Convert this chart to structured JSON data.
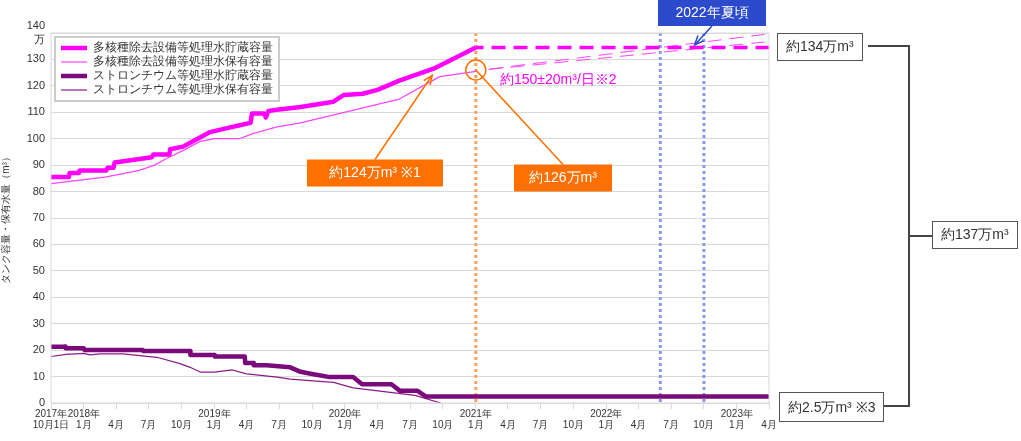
{
  "chart_data": {
    "type": "line",
    "ylabel": "タンク容量・保有水量（m³）",
    "ylim": [
      0,
      140
    ],
    "yticks": [
      0,
      10,
      20,
      30,
      40,
      50,
      60,
      70,
      80,
      90,
      100,
      110,
      120,
      130,
      {
        "value": 140,
        "label": "140\n万"
      }
    ],
    "xlim": [
      "2017-10-01",
      "2023-04-01"
    ],
    "xticks": [
      {
        "value": "2017-10-01",
        "label": "2017年\n10月1日"
      },
      {
        "value": "2018-01-01",
        "label": "2018年\n1月"
      },
      {
        "value": "2018-04-01",
        "label": "\n4月"
      },
      {
        "value": "2018-07-01",
        "label": "\n7月"
      },
      {
        "value": "2018-10-01",
        "label": "\n10月"
      },
      {
        "value": "2019-01-01",
        "label": "2019年\n1月"
      },
      {
        "value": "2019-04-01",
        "label": "\n4月"
      },
      {
        "value": "2019-07-01",
        "label": "\n7月"
      },
      {
        "value": "2019-10-01",
        "label": "\n10月"
      },
      {
        "value": "2020-01-01",
        "label": "2020年\n1月"
      },
      {
        "value": "2020-04-01",
        "label": "\n4月"
      },
      {
        "value": "2020-07-01",
        "label": "\n7月"
      },
      {
        "value": "2020-10-01",
        "label": "\n10月"
      },
      {
        "value": "2021-01-01",
        "label": "2021年\n1月"
      },
      {
        "value": "2021-04-01",
        "label": "\n4月"
      },
      {
        "value": "2021-07-01",
        "label": "\n7月"
      },
      {
        "value": "2021-10-01",
        "label": "\n10月"
      },
      {
        "value": "2022-01-01",
        "label": "2022年\n1月"
      },
      {
        "value": "2022-04-01",
        "label": "\n4月"
      },
      {
        "value": "2022-07-01",
        "label": "\n7月"
      },
      {
        "value": "2022-10-01",
        "label": "\n10月"
      },
      {
        "value": "2023-01-01",
        "label": "2023年\n1月"
      },
      {
        "value": "2023-04-01",
        "label": "\n4月"
      }
    ],
    "grid": "y",
    "legend": "top left",
    "series": [
      {
        "name": "多核種除去設備等処理水貯蔵容量",
        "color": "#ff00ff",
        "x": [
          "2017-10-01",
          "2017-11-20",
          "2017-11-22",
          "2017-12-18",
          "2017-12-20",
          "2018-03-05",
          "2018-03-08",
          "2018-03-25",
          "2018-03-28",
          "2018-07-10",
          "2018-07-14",
          "2018-08-28",
          "2018-08-30",
          "2018-10-05",
          "2018-11-15",
          "2018-12-20",
          "2019-02-05",
          "2019-03-10",
          "2019-04-12",
          "2019-04-16",
          "2019-05-20",
          "2019-05-25",
          "2019-06-01",
          "2019-06-25",
          "2019-08-30",
          "2019-11-30",
          "2019-12-28",
          "2020-02-20",
          "2020-04-01",
          "2020-06-01",
          "2020-09-05",
          "2021-01-01"
        ],
        "values": [
          85.5,
          85.5,
          87,
          87,
          88,
          88,
          89,
          89,
          91,
          93,
          94,
          94,
          96,
          97,
          100,
          102.5,
          104,
          105,
          106,
          109.5,
          109.5,
          108,
          110.5,
          111,
          112,
          114,
          116.5,
          117,
          118.5,
          122,
          126.5,
          134.5
        ]
      },
      {
        "name": "多核種除去設備等処理水保有容量",
        "color": "#ff44ff",
        "x": [
          "2017-10-01",
          "2018-03-01",
          "2018-06-05",
          "2018-07-18",
          "2018-08-20",
          "2018-10-05",
          "2018-11-22",
          "2019-01-02",
          "2019-03-12",
          "2019-04-20",
          "2019-06-25",
          "2019-08-30",
          "2020-06-01",
          "2020-09-22",
          "2021-01-01"
        ],
        "values": [
          83,
          85.5,
          88,
          90,
          92.5,
          95.5,
          99,
          100,
          100,
          102,
          104.5,
          106,
          115,
          123.5,
          125.5
        ]
      },
      {
        "name": "ストロンチウム等処理水貯蔵容量",
        "color": "#7b0a7b",
        "x": [
          "2017-10-01",
          "2017-11-10",
          "2017-11-11",
          "2018-01-01",
          "2018-01-02",
          "2018-06-15",
          "2018-06-16",
          "2018-10-25",
          "2018-10-26",
          "2019-01-01",
          "2019-01-02",
          "2019-03-27",
          "2019-03-28",
          "2019-04-20",
          "2019-04-21",
          "2019-05-27",
          "2019-08-01",
          "2019-08-30",
          "2019-10-01",
          "2019-11-20",
          "2020-01-24",
          "2020-02-18",
          "2020-05-10",
          "2020-06-03",
          "2020-07-22",
          "2020-08-14",
          "2023-04-01"
        ],
        "values": [
          21.3,
          21.3,
          20.7,
          20.7,
          20.1,
          20.1,
          19.7,
          19.7,
          18.2,
          18.2,
          17.6,
          17.6,
          15.1,
          15.1,
          14.3,
          14.3,
          13.5,
          11.8,
          11,
          9.8,
          9.8,
          7.1,
          7.1,
          4.6,
          4.6,
          2.5,
          2.5
        ]
      },
      {
        "name": "ストロンチウム等処理水保有容量",
        "color": "#8a1a8a",
        "x": [
          "2017-10-01",
          "2017-11-12",
          "2018-01-01",
          "2018-01-18",
          "2018-02-15",
          "2018-04-20",
          "2018-07-24",
          "2018-09-27",
          "2018-10-25",
          "2018-11-22",
          "2019-01-01",
          "2019-02-20",
          "2019-04-01",
          "2019-06-25",
          "2019-08-01",
          "2019-11-30",
          "2020-01-24",
          "2020-07-15",
          "2020-09-25"
        ],
        "values": [
          17.6,
          18.4,
          18.8,
          18.2,
          18.6,
          18.6,
          17.3,
          14.9,
          13.5,
          11.7,
          11.7,
          12.5,
          11,
          9.8,
          9,
          7.8,
          5.7,
          2.9,
          0
        ]
      },
      {
        "color": "#ff00ff",
        "line_style": "dashed",
        "x": [
          "2021-01-01",
          "2023-04-01"
        ],
        "values": [
          134.5,
          134.5
        ]
      },
      {
        "color": "#ff44ff",
        "line_style": "dashed",
        "x": [
          "2021-01-20",
          "2023-03-20"
        ],
        "values": [
          126,
          139.5
        ]
      },
      {
        "color": "#ff44ff",
        "line_style": "dashed",
        "x": [
          "2021-01-20",
          "2023-03-20"
        ],
        "values": [
          126,
          136.6
        ]
      }
    ],
    "ref_lines": [
      {
        "axis": "x",
        "value": "2021-01-01",
        "color": "#ffa060",
        "line_style": "dotted"
      },
      {
        "axis": "x",
        "value": "2022-06-01",
        "color": "#8899ee",
        "line_style": "dotted"
      },
      {
        "axis": "x",
        "value": "2022-10-01",
        "color": "#8899ee",
        "line_style": "dotted"
      }
    ],
    "annotations": [
      {
        "text": "約124万m³ ※1",
        "x": "2020-09-01",
        "y": 124
      },
      {
        "text": "約126万m³",
        "x": "2021-01-01",
        "y": 126
      },
      "約150±20m³/日※2",
      {
        "text": "2022年夏頃",
        "x": "2022-09-05",
        "y": 135.5
      },
      "約134万m³",
      "約137万m³",
      "約2.5万m³ ※3"
    ]
  }
}
